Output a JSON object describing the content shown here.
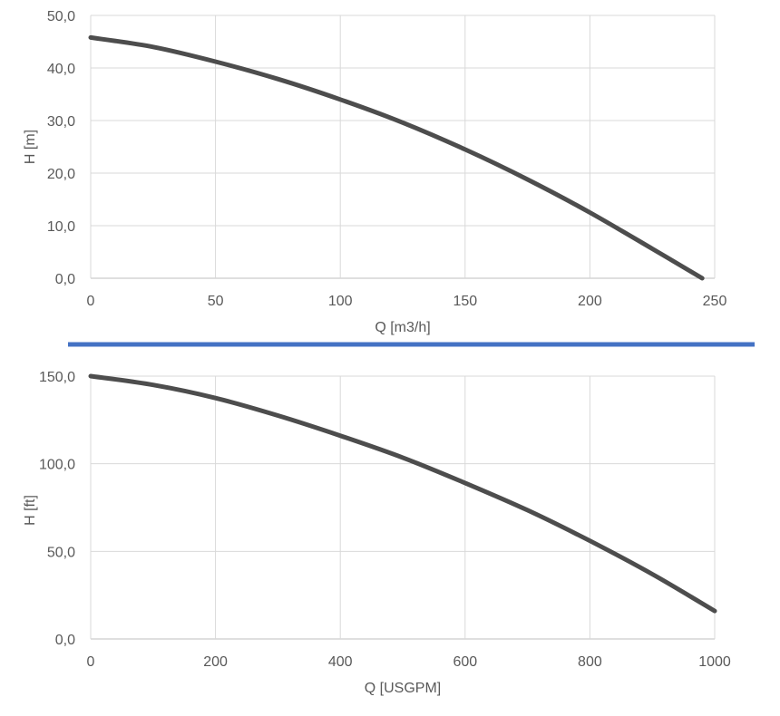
{
  "colors": {
    "curve": "#4d4d4d",
    "separator": "#4472c4",
    "grid": "#d9d9d9",
    "text": "#595959"
  },
  "chart_data": [
    {
      "type": "line",
      "title": "",
      "xlabel": "Q [m3/h]",
      "ylabel": "H [m]",
      "xlim": [
        0,
        250
      ],
      "ylim": [
        0,
        50
      ],
      "xticks": [
        0,
        50,
        100,
        150,
        200,
        250
      ],
      "yticks": [
        0,
        10,
        20,
        30,
        40,
        50
      ],
      "xtick_labels": [
        "0",
        "50",
        "100",
        "150",
        "200",
        "250"
      ],
      "ytick_labels": [
        "0,0",
        "10,0",
        "20,0",
        "30,0",
        "40,0",
        "50,0"
      ],
      "grid": true,
      "legend": "none",
      "series": [
        {
          "x": [
            0,
            25,
            50,
            75,
            100,
            125,
            150,
            175,
            200,
            225,
            245
          ],
          "y": [
            45.8,
            44.0,
            41.2,
            37.9,
            34.0,
            29.6,
            24.5,
            18.8,
            12.5,
            5.6,
            0.0
          ]
        }
      ]
    },
    {
      "type": "line",
      "title": "",
      "xlabel": "Q [USGPM]",
      "ylabel": "H [ft]",
      "xlim": [
        0,
        1000
      ],
      "ylim": [
        0,
        150
      ],
      "xticks": [
        0,
        200,
        400,
        600,
        800,
        1000
      ],
      "yticks": [
        0,
        50,
        100,
        150
      ],
      "xtick_labels": [
        "0",
        "200",
        "400",
        "600",
        "800",
        "1000"
      ],
      "ytick_labels": [
        "0,0",
        "50,0",
        "100,0",
        "150,0"
      ],
      "grid": true,
      "legend": "none",
      "series": [
        {
          "x": [
            0,
            100,
            200,
            300,
            400,
            500,
            600,
            700,
            800,
            900,
            1000
          ],
          "y": [
            150.0,
            145.0,
            137.5,
            127.5,
            116.0,
            103.5,
            89.0,
            73.5,
            56.0,
            37.0,
            16.0
          ]
        }
      ]
    }
  ]
}
